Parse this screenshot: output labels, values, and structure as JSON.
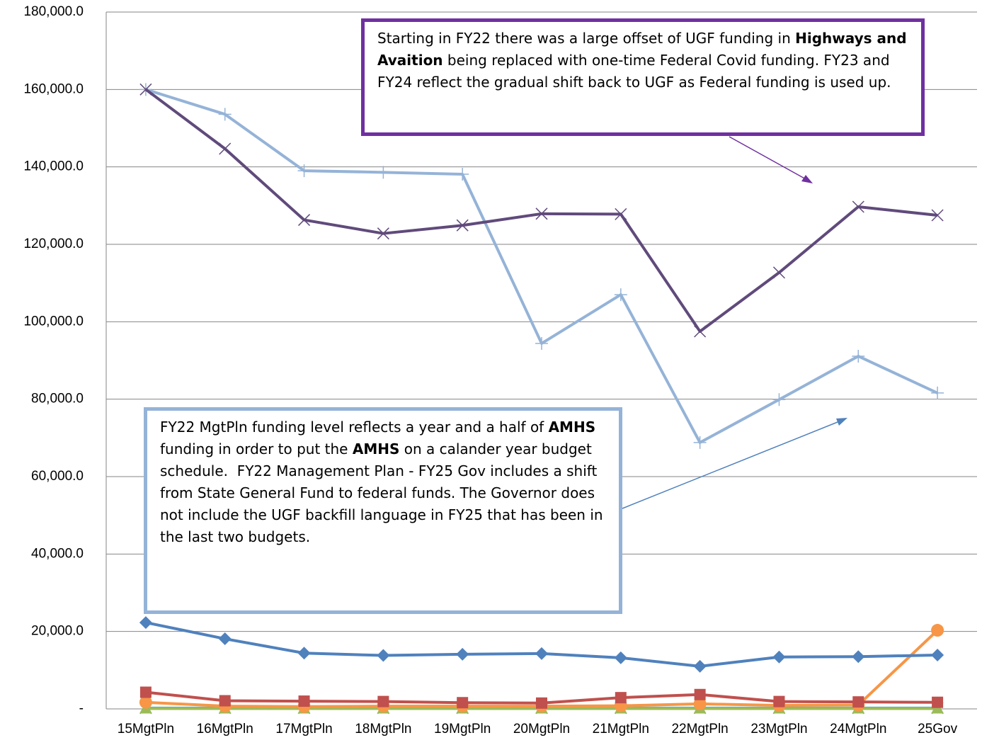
{
  "chart_data": {
    "type": "line",
    "categories": [
      "15MgtPln",
      "16MgtPln",
      "17MgtPln",
      "18MgtPln",
      "19MgtPln",
      "20MgtPln",
      "21MgtPln",
      "22MgtPln",
      "23MgtPln",
      "24MgtPln",
      "25Gov"
    ],
    "series": [
      {
        "color": "#604a7b",
        "marker": "x",
        "values": [
          160000,
          144700,
          126300,
          122800,
          124900,
          127900,
          127800,
          97500,
          112700,
          129700,
          127500
        ]
      },
      {
        "color": "#95b3d7",
        "marker": "plus",
        "values": [
          160000,
          153600,
          139000,
          138600,
          138100,
          94400,
          107000,
          68800,
          79900,
          91100,
          81600
        ]
      },
      {
        "color": "#4f81bd",
        "marker": "diamond",
        "values": [
          22300,
          18100,
          14400,
          13800,
          14100,
          14300,
          13200,
          11000,
          13400,
          13500,
          13900
        ]
      },
      {
        "color": "#c0504d",
        "marker": "square",
        "values": [
          4300,
          2100,
          2000,
          1900,
          1600,
          1500,
          2900,
          3700,
          1900,
          1800,
          1700
        ]
      },
      {
        "color": "#f79646",
        "marker": "circle",
        "values": [
          1700,
          700,
          600,
          700,
          700,
          700,
          800,
          1300,
          900,
          1000,
          20300
        ]
      },
      {
        "color": "#9bbb59",
        "marker": "triangle",
        "values": [
          100,
          100,
          100,
          100,
          100,
          100,
          100,
          100,
          100,
          100,
          100
        ]
      },
      {
        "color": "#4bacc6",
        "marker": "x",
        "values": [
          200,
          200,
          200,
          200,
          200,
          200,
          200,
          200,
          200,
          200,
          200
        ]
      }
    ],
    "ylim": [
      0,
      180000
    ],
    "yticks": [
      {
        "value": 0,
        "label": "-"
      },
      {
        "value": 20000,
        "label": "20,000.0"
      },
      {
        "value": 40000,
        "label": "40,000.0"
      },
      {
        "value": 60000,
        "label": "60,000.0"
      },
      {
        "value": 80000,
        "label": "80,000.0"
      },
      {
        "value": 100000,
        "label": "100,000.0"
      },
      {
        "value": 120000,
        "label": "120,000.0"
      },
      {
        "value": 140000,
        "label": "140,000.0"
      },
      {
        "value": 160000,
        "label": "160,000.0"
      },
      {
        "value": 180000,
        "label": "180,000.0"
      }
    ],
    "grid": true,
    "annotations": [
      {
        "runs": [
          "Starting in FY22 there was a large offset of UGF funding in ",
          "Highways and Avaition",
          " being replaced with one-time Federal Covid funding. FY23 and FY24 reflect the gradual shift back to UGF as Federal funding is used up."
        ],
        "bold_runs": [
          1
        ],
        "border": "#7030a0"
      },
      {
        "runs": [
          "FY22 MgtPln funding level reflects a year and a half of ",
          "AMHS",
          " funding in order to put the ",
          "AMHS",
          " on a calander year budget schedule.  FY22 Management Plan - FY25 Gov includes a shift from State General Fund to federal funds. The Governor does not include the UGF backfill language in FY25 that has been in the last two budgets."
        ],
        "bold_runs": [
          1,
          3
        ],
        "border": "#95b3d7"
      }
    ]
  }
}
